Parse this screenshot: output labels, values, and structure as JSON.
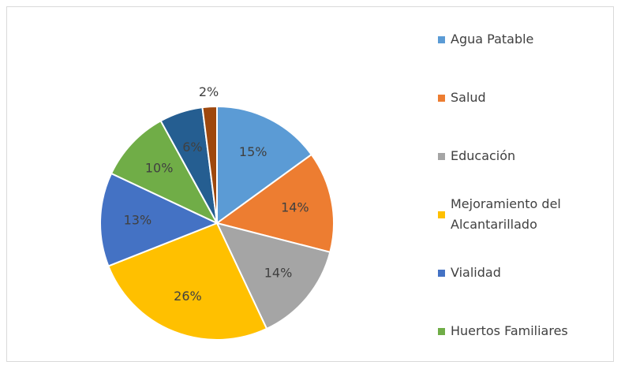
{
  "chart_data": {
    "type": "pie",
    "categories": [
      "Agua Patable",
      "Salud",
      "Educación",
      "Mejoramiento del Alcantarillado",
      "Vialidad",
      "Huertos Familiares",
      null,
      null
    ],
    "values": [
      15,
      14,
      14,
      26,
      13,
      10,
      6,
      2
    ],
    "value_labels": [
      "15%",
      "14%",
      "14%",
      "26%",
      "13%",
      "10%",
      "6%",
      "2%"
    ],
    "colors": [
      "#5b9bd5",
      "#ed7d31",
      "#a5a5a5",
      "#ffc000",
      "#4472c4",
      "#70ad47",
      "#255e91",
      "#9e480e"
    ],
    "legend": "right"
  }
}
